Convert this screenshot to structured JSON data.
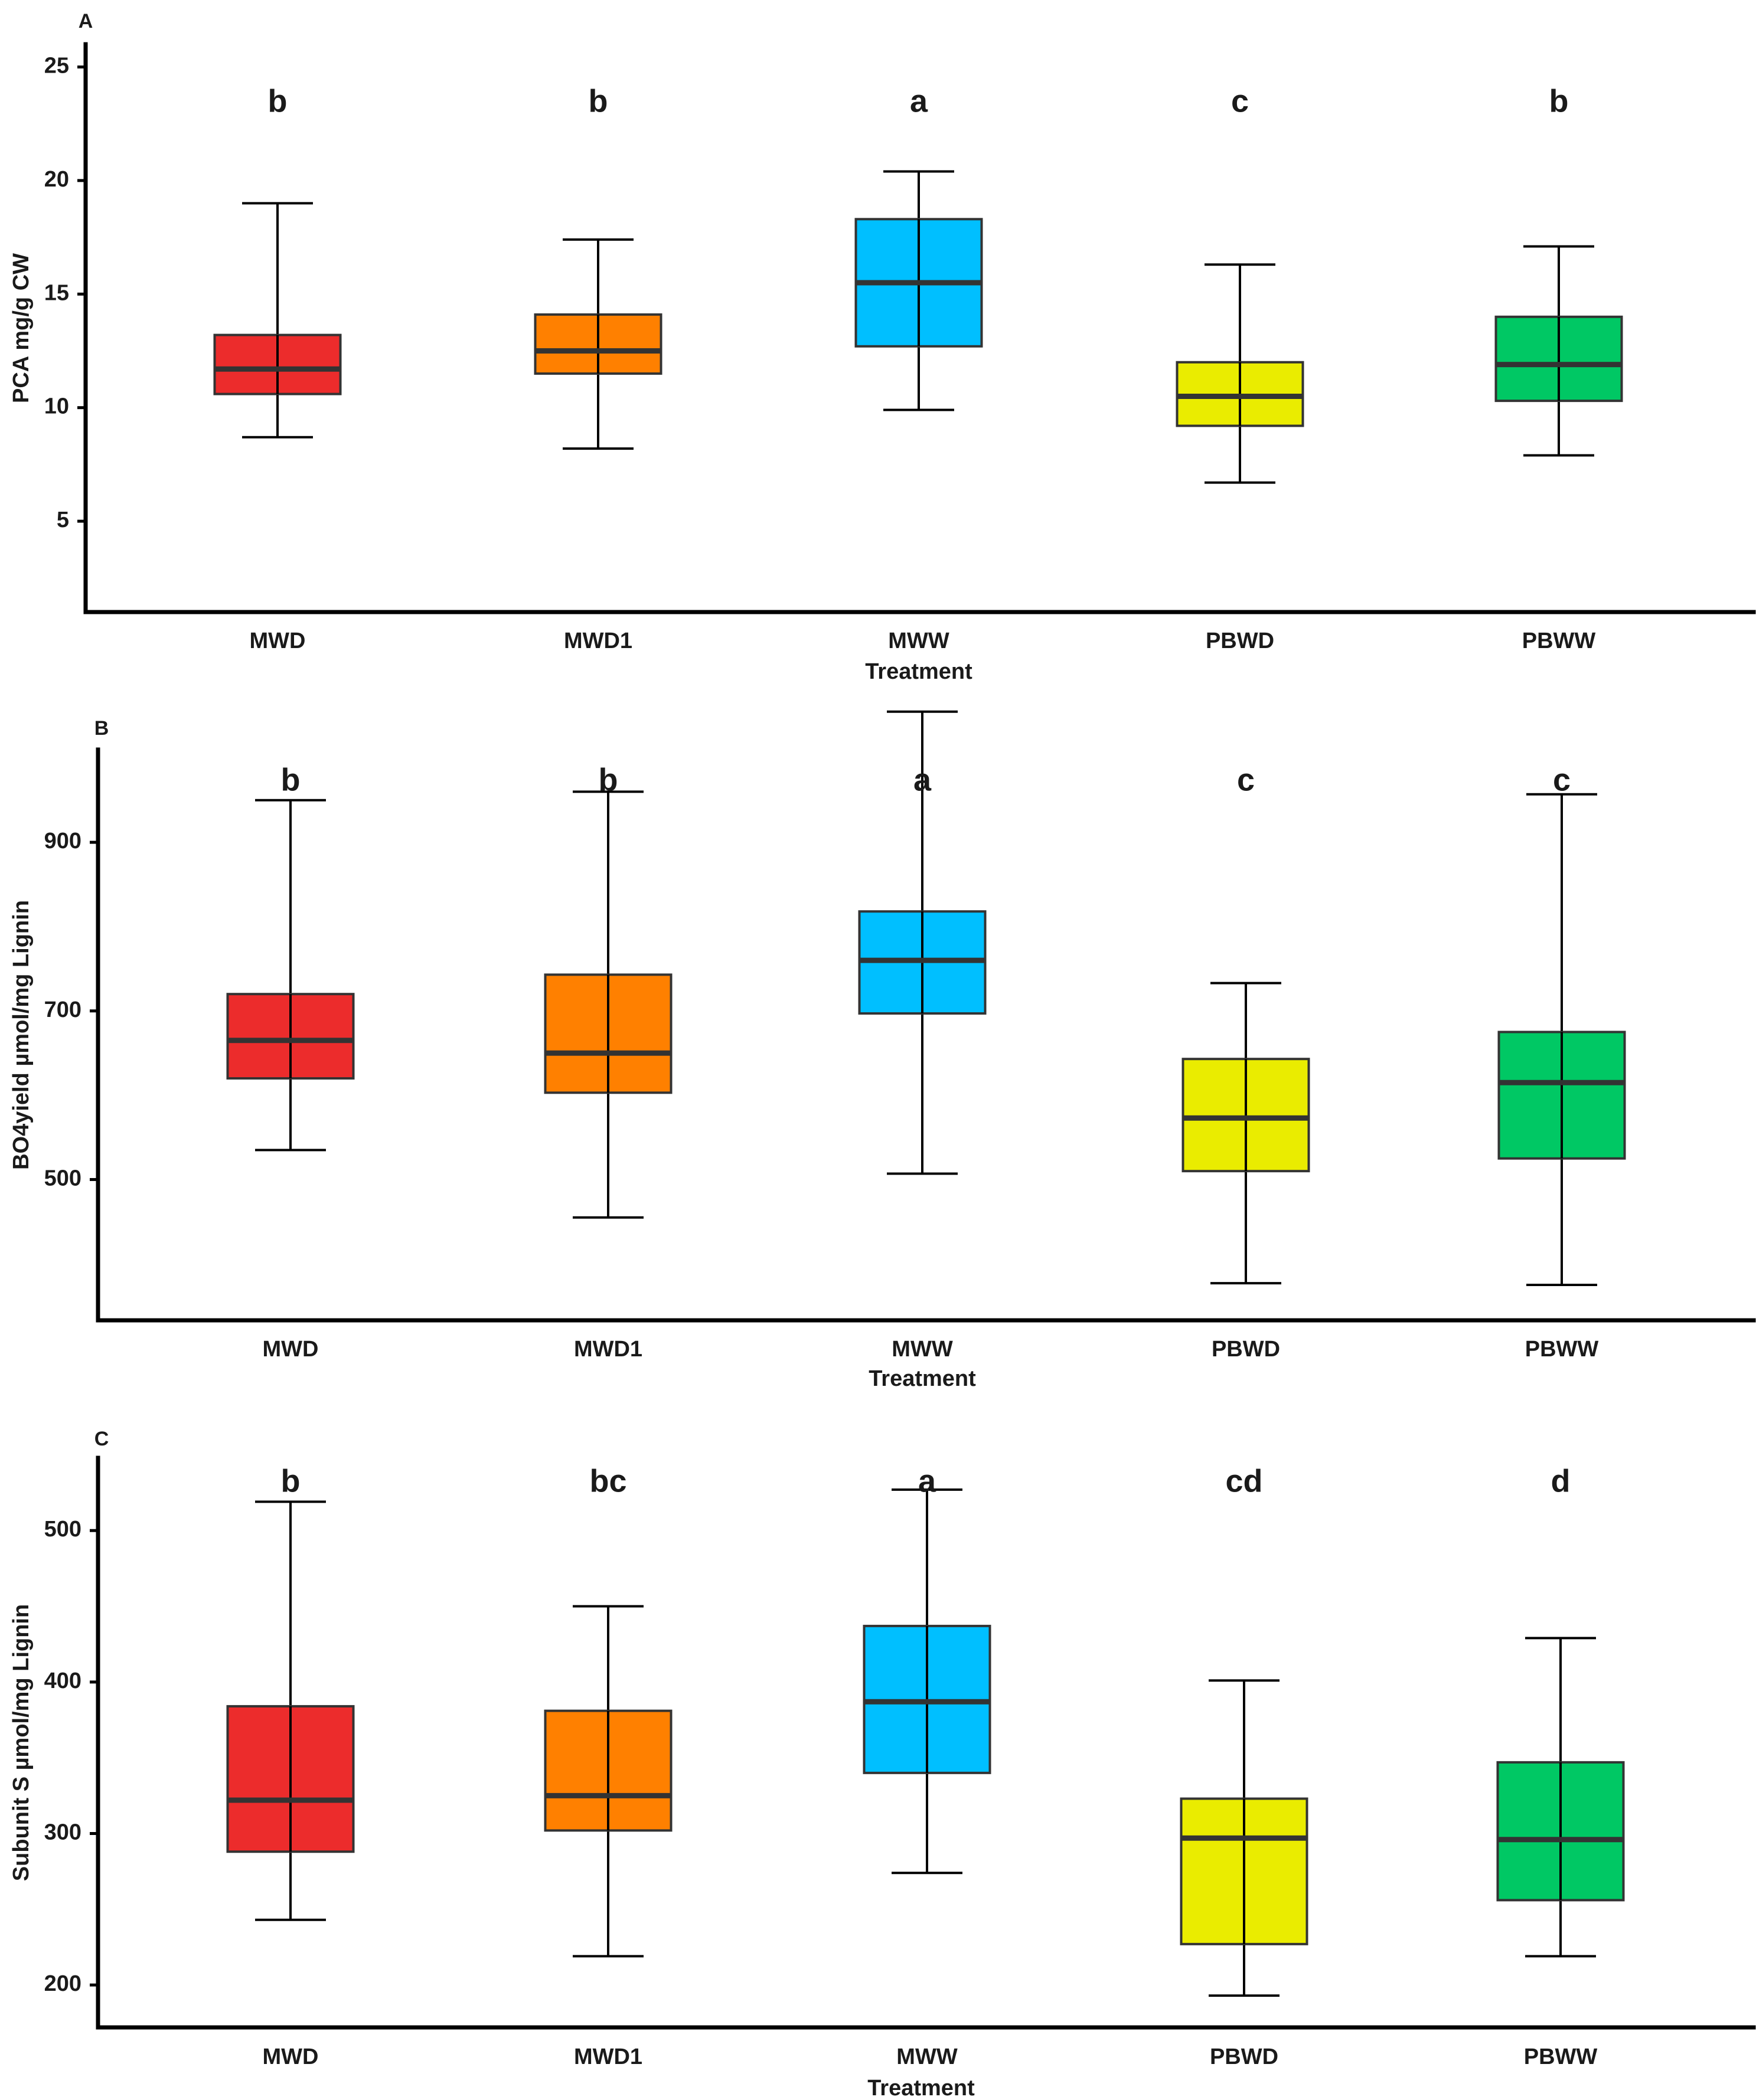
{
  "colors": {
    "MWD": "#ec2c2c",
    "MWD1": "#ff8000",
    "MWW": "#00bfff",
    "PBWD": "#eaec00",
    "PBWW": "#00c864"
  },
  "chart_data": [
    {
      "type": "box",
      "panel": "A",
      "title": "",
      "xlabel": "Treatment",
      "ylabel": "PCA mg/g CW",
      "ylim": [
        1,
        26
      ],
      "yticks": [
        5,
        10,
        15,
        20,
        25
      ],
      "categories": [
        "MWD",
        "MWD1",
        "MWW",
        "PBWD",
        "PBWW"
      ],
      "boxes": [
        {
          "category": "MWD",
          "min": 8.7,
          "q1": 10.6,
          "median": 11.7,
          "q3": 13.2,
          "max": 19.0
        },
        {
          "category": "MWD1",
          "min": 8.2,
          "q1": 11.5,
          "median": 12.5,
          "q3": 14.1,
          "max": 17.4
        },
        {
          "category": "MWW",
          "min": 9.9,
          "q1": 12.7,
          "median": 15.5,
          "q3": 18.3,
          "max": 20.4
        },
        {
          "category": "PBWD",
          "min": 6.7,
          "q1": 9.2,
          "median": 10.5,
          "q3": 12.0,
          "max": 16.3
        },
        {
          "category": "PBWW",
          "min": 7.9,
          "q1": 10.3,
          "median": 11.9,
          "q3": 14.0,
          "max": 17.1
        }
      ],
      "significance": [
        "b",
        "b",
        "a",
        "c",
        "b"
      ]
    },
    {
      "type": "box",
      "panel": "B",
      "title": "",
      "xlabel": "Treatment",
      "ylabel": "BO4yield µmol/mg Lignin",
      "ylim": [
        333,
        1010
      ],
      "yticks": [
        500,
        700,
        900
      ],
      "categories": [
        "MWD",
        "MWD1",
        "MWW",
        "PBWD",
        "PBWW"
      ],
      "boxes": [
        {
          "category": "MWD",
          "min": 535,
          "q1": 620,
          "median": 665,
          "q3": 720,
          "max": 950
        },
        {
          "category": "MWD1",
          "min": 455,
          "q1": 603,
          "median": 650,
          "q3": 743,
          "max": 960
        },
        {
          "category": "MWW",
          "min": 507,
          "q1": 697,
          "median": 760,
          "q3": 818,
          "max": 1055
        },
        {
          "category": "PBWD",
          "min": 377,
          "q1": 510,
          "median": 573,
          "q3": 643,
          "max": 733
        },
        {
          "category": "PBWW",
          "min": 375,
          "q1": 525,
          "median": 615,
          "q3": 675,
          "max": 957
        }
      ],
      "significance": [
        "b",
        "b",
        "a",
        "c",
        "c"
      ]
    },
    {
      "type": "box",
      "panel": "C",
      "title": "",
      "xlabel": "Treatment",
      "ylabel": "Subunit S µmol/mg Lignin",
      "ylim": [
        172,
        548
      ],
      "yticks": [
        200,
        300,
        400,
        500
      ],
      "categories": [
        "MWD",
        "MWD1",
        "MWW",
        "PBWD",
        "PBWW"
      ],
      "boxes": [
        {
          "category": "MWD",
          "min": 243,
          "q1": 288,
          "median": 322,
          "q3": 384,
          "max": 519
        },
        {
          "category": "MWD1",
          "min": 219,
          "q1": 302,
          "median": 325,
          "q3": 381,
          "max": 450
        },
        {
          "category": "MWW",
          "min": 274,
          "q1": 340,
          "median": 387,
          "q3": 437,
          "max": 527
        },
        {
          "category": "PBWD",
          "min": 193,
          "q1": 227,
          "median": 297,
          "q3": 323,
          "max": 401
        },
        {
          "category": "PBWW",
          "min": 219,
          "q1": 256,
          "median": 296,
          "q3": 347,
          "max": 429
        }
      ],
      "significance": [
        "b",
        "bc",
        "a",
        "cd",
        "d"
      ]
    }
  ]
}
